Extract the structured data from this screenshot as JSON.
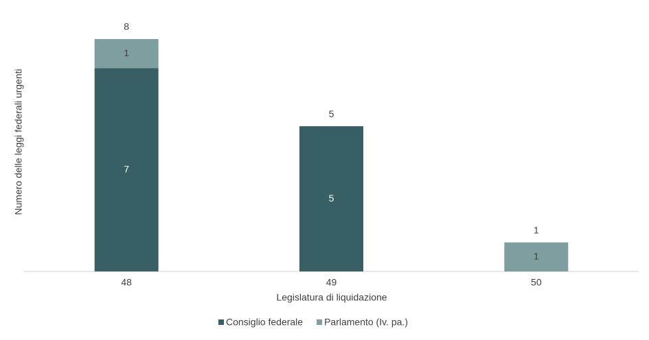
{
  "chart_data": {
    "type": "stacked-bar",
    "x_label": "Legislatura di liquidazione",
    "y_label": "Numero delle leggi federali urgenti",
    "categories": [
      "48",
      "49",
      "50"
    ],
    "series": [
      {
        "name": "Consiglio federale",
        "color": "#375f64",
        "values": [
          7,
          5,
          null
        ]
      },
      {
        "name": "Parlamento (Iv. pa.)",
        "color": "#7f9ea0",
        "values": [
          1,
          null,
          1
        ]
      }
    ],
    "totals": [
      8,
      5,
      1
    ],
    "ylim": [
      0,
      8
    ],
    "legend": "bottom"
  }
}
